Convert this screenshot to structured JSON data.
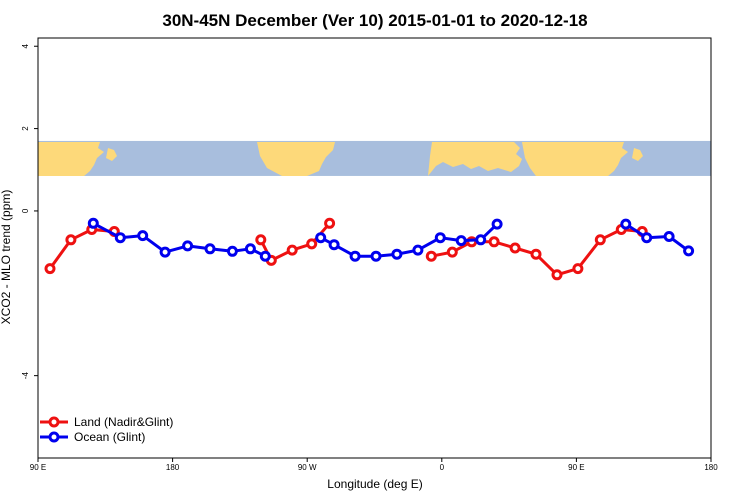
{
  "chart_data": {
    "type": "line",
    "title": "30N-45N December (Ver 10)   2015-01-01 to 2020-12-18",
    "xlabel": "Longitude (deg E)",
    "ylabel": "XCO2 - MLO trend (ppm)",
    "xlim": [
      90,
      540
    ],
    "ylim": [
      -6,
      4.2
    ],
    "x_ticks": [
      {
        "value": 90,
        "label": "90 E"
      },
      {
        "value": 180,
        "label": "180"
      },
      {
        "value": 270,
        "label": "90 W"
      },
      {
        "value": 360,
        "label": "0"
      },
      {
        "value": 450,
        "label": "90 E"
      },
      {
        "value": 540,
        "label": "180"
      }
    ],
    "y_ticks": [
      {
        "value": 4,
        "label": "4"
      },
      {
        "value": 2,
        "label": "2"
      },
      {
        "value": 0,
        "label": "0"
      },
      {
        "value": -4,
        "label": "-4"
      }
    ],
    "map_band": {
      "y_top": 1.7,
      "y_bottom": 0.85,
      "ocean_color": "#a8bedd",
      "land_color": "#fdd97a"
    },
    "legend": {
      "position": "bottom-left"
    },
    "series": [
      {
        "name": "Land (Nadir&Glint)",
        "color": "#ee1111",
        "segments": [
          [
            [
              98,
              -1.4
            ],
            [
              112,
              -0.7
            ],
            [
              126,
              -0.45
            ],
            [
              141,
              -0.5
            ]
          ],
          [
            [
              239,
              -0.7
            ],
            [
              246,
              -1.2
            ],
            [
              260,
              -0.95
            ],
            [
              273,
              -0.8
            ],
            [
              285,
              -0.3
            ]
          ],
          [
            [
              353,
              -1.1
            ],
            [
              367,
              -1.0
            ],
            [
              380,
              -0.75
            ],
            [
              395,
              -0.75
            ],
            [
              409,
              -0.9
            ],
            [
              423,
              -1.05
            ],
            [
              437,
              -1.55
            ],
            [
              451,
              -1.4
            ],
            [
              466,
              -0.7
            ],
            [
              480,
              -0.45
            ],
            [
              494,
              -0.5
            ]
          ]
        ]
      },
      {
        "name": "Ocean (Glint)",
        "color": "#0000ee",
        "segments": [
          [
            [
              127,
              -0.3
            ],
            [
              145,
              -0.65
            ],
            [
              160,
              -0.6
            ],
            [
              175,
              -1.0
            ],
            [
              190,
              -0.85
            ],
            [
              205,
              -0.92
            ],
            [
              220,
              -0.98
            ],
            [
              232,
              -0.92
            ],
            [
              242,
              -1.1
            ]
          ],
          [
            [
              279,
              -0.65
            ],
            [
              288,
              -0.82
            ],
            [
              302,
              -1.1
            ],
            [
              316,
              -1.1
            ],
            [
              330,
              -1.05
            ],
            [
              344,
              -0.95
            ],
            [
              359,
              -0.65
            ],
            [
              373,
              -0.72
            ],
            [
              386,
              -0.7
            ],
            [
              397,
              -0.32
            ]
          ],
          [
            [
              483,
              -0.32
            ],
            [
              497,
              -0.65
            ],
            [
              512,
              -0.62
            ],
            [
              525,
              -0.97
            ]
          ]
        ]
      }
    ]
  }
}
